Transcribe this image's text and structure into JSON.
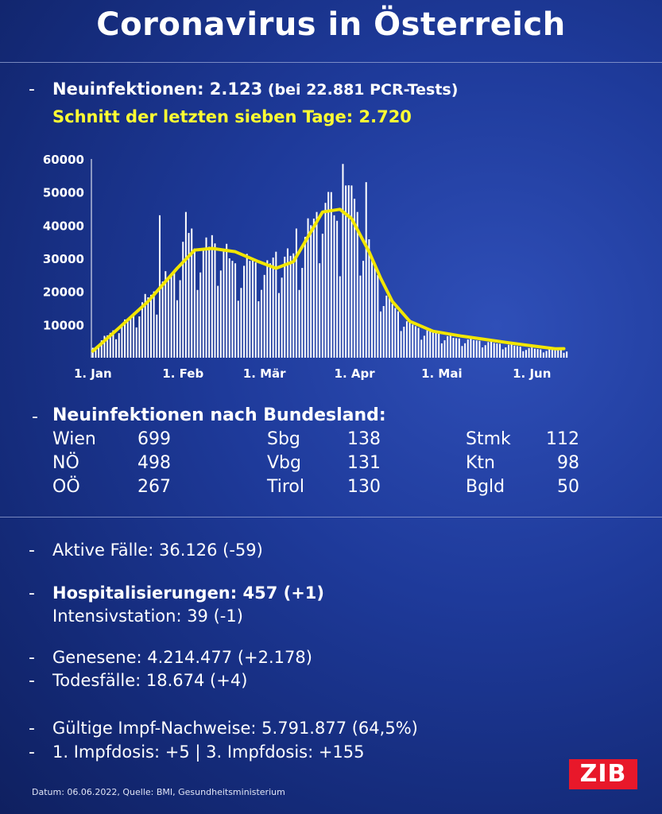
{
  "title": "Coronavirus in Österreich",
  "headline": {
    "label": "Neuinfektionen: 2.123",
    "tests": "(bei 22.881 PCR-Tests)",
    "avg": "Schnitt der letzten sieben Tage: 2.720"
  },
  "chart_data": {
    "type": "bar",
    "title": "",
    "xlabel": "",
    "ylabel": "",
    "ylim": [
      0,
      60000
    ],
    "y_ticks": [
      "60000",
      "50000",
      "40000",
      "30000",
      "20000",
      "10000"
    ],
    "x_ticks": [
      "1. Jan",
      "1. Feb",
      "1. Mär",
      "1. Apr",
      "1. Mai",
      "1. Jun"
    ],
    "grid": false,
    "series": [
      {
        "type": "bar",
        "color": "#ffffff",
        "anchors": [
          [
            1,
            3000
          ],
          [
            5,
            6000
          ],
          [
            9,
            9000
          ],
          [
            13,
            11000
          ],
          [
            17,
            16000
          ],
          [
            21,
            19000
          ],
          [
            25,
            23000
          ],
          [
            29,
            26000
          ],
          [
            31,
            30000
          ],
          [
            33,
            40000
          ],
          [
            36,
            33000
          ],
          [
            40,
            33000
          ],
          [
            44,
            35000
          ],
          [
            48,
            30000
          ],
          [
            52,
            27000
          ],
          [
            56,
            30000
          ],
          [
            60,
            25000
          ],
          [
            64,
            32000
          ],
          [
            68,
            30000
          ],
          [
            72,
            33000
          ],
          [
            76,
            40000
          ],
          [
            80,
            48000
          ],
          [
            84,
            43000
          ],
          [
            87,
            38000
          ],
          [
            90,
            52000
          ],
          [
            93,
            40000
          ],
          [
            97,
            30000
          ],
          [
            101,
            20000
          ],
          [
            105,
            15000
          ],
          [
            109,
            11000
          ],
          [
            113,
            9000
          ],
          [
            117,
            8000
          ],
          [
            121,
            7000
          ],
          [
            125,
            6000
          ],
          [
            130,
            5500
          ],
          [
            135,
            5000
          ],
          [
            140,
            4300
          ],
          [
            145,
            3800
          ],
          [
            150,
            3000
          ],
          [
            155,
            2500
          ],
          [
            160,
            2800
          ],
          [
            163,
            2400
          ]
        ],
        "peaks": [
          [
            87,
            58500
          ],
          [
            88,
            52000
          ],
          [
            83,
            50000
          ],
          [
            95,
            53000
          ],
          [
            24,
            43000
          ],
          [
            35,
            39000
          ],
          [
            71,
            39000
          ],
          [
            42,
            37000
          ]
        ]
      },
      {
        "type": "line",
        "color": "#f2e600",
        "points": [
          [
            1,
            2000
          ],
          [
            10,
            9000
          ],
          [
            20,
            17000
          ],
          [
            30,
            27000
          ],
          [
            36,
            32500
          ],
          [
            42,
            33000
          ],
          [
            50,
            32000
          ],
          [
            58,
            29000
          ],
          [
            64,
            27000
          ],
          [
            70,
            29000
          ],
          [
            76,
            38000
          ],
          [
            80,
            44000
          ],
          [
            86,
            44800
          ],
          [
            90,
            42000
          ],
          [
            96,
            32000
          ],
          [
            100,
            24000
          ],
          [
            104,
            17000
          ],
          [
            110,
            11000
          ],
          [
            118,
            8000
          ],
          [
            128,
            6500
          ],
          [
            140,
            5000
          ],
          [
            150,
            3800
          ],
          [
            160,
            2700
          ],
          [
            163,
            2720
          ]
        ]
      }
    ]
  },
  "bundesland": {
    "heading": "Neuinfektionen nach Bundesland:",
    "items": [
      {
        "name": "Wien",
        "value": "699"
      },
      {
        "name": "NÖ",
        "value": "498"
      },
      {
        "name": "OÖ",
        "value": "267"
      },
      {
        "name": "Sbg",
        "value": "138"
      },
      {
        "name": "Vbg",
        "value": "131"
      },
      {
        "name": "Tirol",
        "value": "130"
      },
      {
        "name": "Stmk",
        "value": "112"
      },
      {
        "name": "Ktn",
        "value": "98"
      },
      {
        "name": "Bgld",
        "value": "50"
      }
    ]
  },
  "stats": {
    "aktive": "Aktive Fälle: 36.126 (-59)",
    "hosp": "Hospitalisierungen: 457 (+1)",
    "intensiv": "Intensivstation: 39 (-1)",
    "genesene": "Genesene: 4.214.477 (+2.178)",
    "tote": "Todesfälle: 18.674 (+4)",
    "impf": "Gültige Impf-Nachweise: 5.791.877 (64,5%)",
    "dosis": "1. Impfdosis: +5 | 3. Impfdosis: +155"
  },
  "footer": "Datum: 06.06.2022, Quelle: BMI, Gesundheitsministerium",
  "logo": "ZIB"
}
